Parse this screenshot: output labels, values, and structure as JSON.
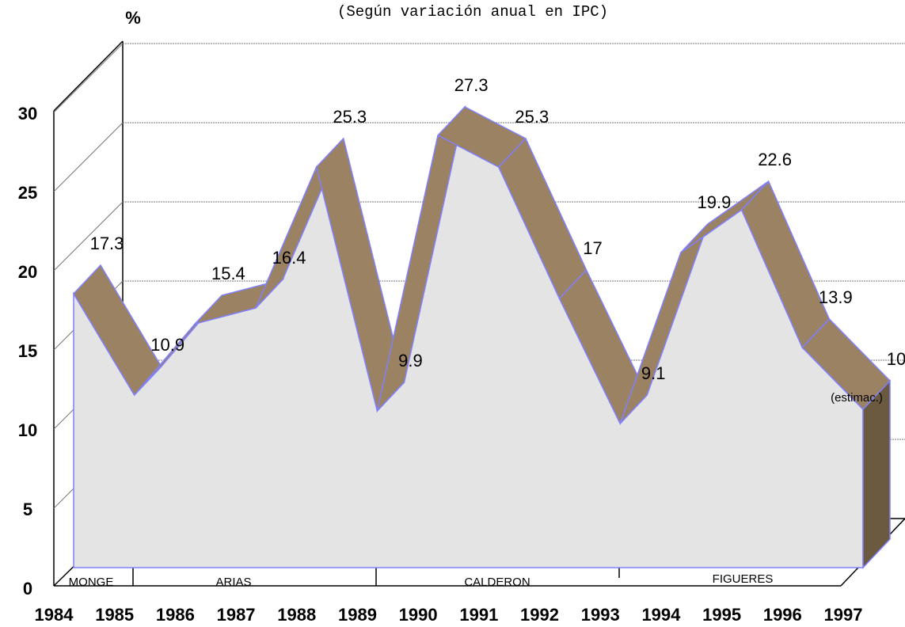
{
  "chart_data": {
    "type": "area3d",
    "subtitle": "(Según variación anual en IPC)",
    "y_label": "%",
    "categories": [
      "1984",
      "1985",
      "1986",
      "1987",
      "1988",
      "1989",
      "1990",
      "1991",
      "1992",
      "1993",
      "1994",
      "1995",
      "1996",
      "1997"
    ],
    "values": [
      17.3,
      10.9,
      15.4,
      16.4,
      25.3,
      9.9,
      27.3,
      25.3,
      17,
      9.1,
      19.9,
      22.6,
      13.9,
      10
    ],
    "estimate_note": "(estimac.)",
    "periods": [
      "MONGE",
      "ARIAS",
      "CALDERON",
      "FIGUERES"
    ],
    "ylim": [
      0,
      30
    ],
    "yticks": [
      0,
      5,
      10,
      15,
      20,
      25,
      30
    ],
    "grid": true,
    "front_color": "#e4e4e4",
    "top_color": "#9a8262",
    "side_color": "#6b5a40",
    "edge_color": "#8080ff"
  }
}
